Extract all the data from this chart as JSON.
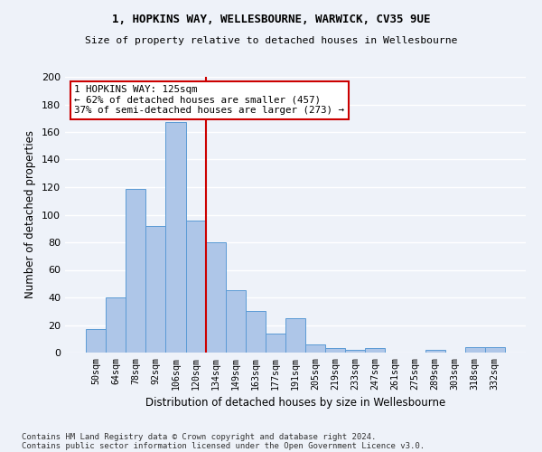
{
  "title1": "1, HOPKINS WAY, WELLESBOURNE, WARWICK, CV35 9UE",
  "title2": "Size of property relative to detached houses in Wellesbourne",
  "xlabel": "Distribution of detached houses by size in Wellesbourne",
  "ylabel": "Number of detached properties",
  "bar_labels": [
    "50sqm",
    "64sqm",
    "78sqm",
    "92sqm",
    "106sqm",
    "120sqm",
    "134sqm",
    "149sqm",
    "163sqm",
    "177sqm",
    "191sqm",
    "205sqm",
    "219sqm",
    "233sqm",
    "247sqm",
    "261sqm",
    "275sqm",
    "289sqm",
    "303sqm",
    "318sqm",
    "332sqm"
  ],
  "bar_values": [
    17,
    40,
    119,
    92,
    167,
    96,
    80,
    45,
    30,
    14,
    25,
    6,
    3,
    2,
    3,
    0,
    0,
    2,
    0,
    4,
    4
  ],
  "bar_color": "#aec6e8",
  "bar_edge_color": "#5b9bd5",
  "vline_x": 5.5,
  "vline_color": "#cc0000",
  "annotation_line1": "1 HOPKINS WAY: 125sqm",
  "annotation_line2": "← 62% of detached houses are smaller (457)",
  "annotation_line3": "37% of semi-detached houses are larger (273) →",
  "annotation_box_color": "#ffffff",
  "annotation_box_edge_color": "#cc0000",
  "footer1": "Contains HM Land Registry data © Crown copyright and database right 2024.",
  "footer2": "Contains public sector information licensed under the Open Government Licence v3.0.",
  "bg_color": "#eef2f9",
  "grid_color": "#ffffff",
  "yticks": [
    0,
    20,
    40,
    60,
    80,
    100,
    120,
    140,
    160,
    180,
    200
  ],
  "ylim": [
    0,
    200
  ]
}
